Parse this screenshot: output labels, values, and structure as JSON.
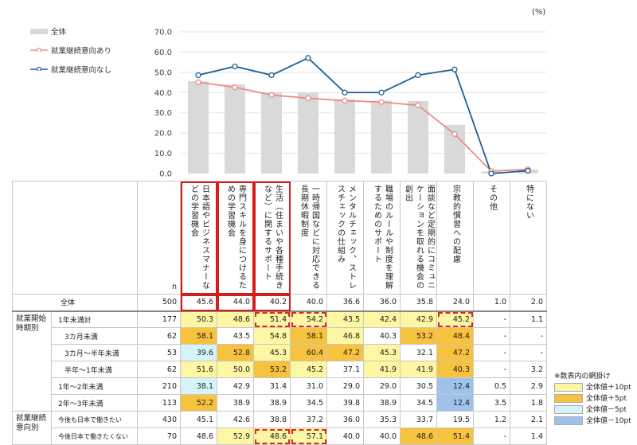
{
  "unit_label": "(%)",
  "legend": [
    {
      "label": "全体",
      "color": "#d9d9d9"
    },
    {
      "label": "就業継続意向あり",
      "color": "#ec8b8b"
    },
    {
      "label": "就業継続意向なし",
      "color": "#1f5e96"
    }
  ],
  "chart_data": {
    "type": "bar",
    "categories": [
      "日本語やビジネスマナーなどの学習機会",
      "専門スキルを身につけるための学習機会",
      "生活（住まいや各種手続きなど）に関するサポート",
      "一時帰国などに対応できる長期休暇制度",
      "メンタルチェック、ストレスチェックの仕組み",
      "職場のルールや制度を理解するためのサポート",
      "面談など定期的にコミュニケーションを取れる機会の創出",
      "宗教的慣習への配慮",
      "その他",
      "特にない"
    ],
    "ylim": [
      0,
      70
    ],
    "y_ticks": [
      "0.0",
      "10.0",
      "20.0",
      "30.0",
      "40.0",
      "50.0",
      "60.0",
      "70.0"
    ],
    "series": [
      {
        "name": "全体",
        "type": "bar",
        "values": [
          45.6,
          44.0,
          40.2,
          40.0,
          36.6,
          36.0,
          35.8,
          24.0,
          1.0,
          2.0
        ]
      },
      {
        "name": "就業継続意向あり",
        "type": "line",
        "values": [
          45.1,
          42.6,
          38.8,
          37.2,
          36.0,
          35.3,
          33.7,
          19.5,
          1.2,
          2.1
        ]
      },
      {
        "name": "就業継続意向なし",
        "type": "line",
        "values": [
          48.6,
          52.9,
          48.6,
          57.1,
          40.0,
          40.0,
          48.6,
          51.4,
          0,
          1.4
        ]
      }
    ]
  },
  "table": {
    "n_header": "n",
    "headers": [
      "日本語やビジネスマナーなどの学習機会",
      "専門スキルを身につけるための学習機会",
      "生活（住まいや各種手続きなど）に関するサポート",
      "一時帰国などに対応できる長期休暇制度",
      "メンタルチェック、ストレスチェックの仕組み",
      "職場のルールや制度を理解するためのサポート",
      "面談など定期的にコミュニケーションを取れる機会の創出",
      "宗教的慣習への配慮",
      "その他",
      "特にない"
    ],
    "groups": [
      {
        "label": "",
        "rows": [
          {
            "label": "全体",
            "n": "500",
            "values": [
              "45.6",
              "44.0",
              "40.2",
              "40.0",
              "36.6",
              "36.0",
              "35.8",
              "24.0",
              "1.0",
              "2.0"
            ],
            "marks": [
              "",
              "",
              "",
              "",
              "",
              "",
              "",
              "",
              "",
              ""
            ],
            "dashed": []
          }
        ]
      },
      {
        "label": "就業開始時期別",
        "rows": [
          {
            "label": "1年未満計",
            "n": "177",
            "values": [
              "50.3",
              "48.6",
              "51.4",
              "54.2",
              "43.5",
              "42.4",
              "42.9",
              "45.2",
              "-",
              "1.1"
            ],
            "marks": [
              "p10",
              "p10",
              "p10",
              "p10",
              "p10",
              "p10",
              "p10",
              "p10",
              "",
              ""
            ],
            "dashed": [
              2,
              3,
              7
            ]
          },
          {
            "label": "3カ月未満",
            "n": "62",
            "values": [
              "58.1",
              "43.5",
              "54.8",
              "58.1",
              "46.8",
              "40.3",
              "53.2",
              "48.4",
              "-",
              "-"
            ],
            "marks": [
              "p5",
              "",
              "p10",
              "p5",
              "p10",
              "",
              "p5",
              "p5",
              "",
              ""
            ],
            "dashed": []
          },
          {
            "label": "3カ月～半年未満",
            "n": "53",
            "values": [
              "39.6",
              "52.8",
              "45.3",
              "60.4",
              "47.2",
              "45.3",
              "32.1",
              "47.2",
              "-",
              "-"
            ],
            "marks": [
              "m5",
              "p5",
              "p10",
              "p5",
              "p5",
              "p10",
              "",
              "p5",
              "",
              ""
            ],
            "dashed": []
          },
          {
            "label": "半年～1年未満",
            "n": "62",
            "values": [
              "51.6",
              "50.0",
              "53.2",
              "45.2",
              "37.1",
              "41.9",
              "41.9",
              "40.3",
              "-",
              "3.2"
            ],
            "marks": [
              "p10",
              "p10",
              "p5",
              "p10",
              "",
              "p10",
              "p10",
              "p5",
              "",
              ""
            ],
            "dashed": []
          },
          {
            "label": "1年～2年未満",
            "n": "210",
            "values": [
              "38.1",
              "42.9",
              "31.4",
              "31.0",
              "29.0",
              "29.0",
              "30.5",
              "12.4",
              "0.5",
              "2.9"
            ],
            "marks": [
              "m5",
              "",
              "",
              "",
              "",
              "",
              "",
              "m10",
              "",
              ""
            ],
            "dashed": []
          },
          {
            "label": "2年～3年未満",
            "n": "113",
            "values": [
              "52.2",
              "38.9",
              "38.9",
              "34.5",
              "39.8",
              "38.9",
              "34.5",
              "12.4",
              "3.5",
              "1.8"
            ],
            "marks": [
              "p5",
              "",
              "",
              "",
              "",
              "",
              "",
              "m10",
              "",
              ""
            ],
            "dashed": []
          }
        ]
      },
      {
        "label": "就業継続意向別",
        "rows": [
          {
            "label": "今後も日本で働きたい",
            "n": "430",
            "values": [
              "45.1",
              "42.6",
              "38.8",
              "37.2",
              "36.0",
              "35.3",
              "33.7",
              "19.5",
              "1.2",
              "2.1"
            ],
            "marks": [
              "",
              "",
              "",
              "",
              "",
              "",
              "",
              "",
              "",
              ""
            ],
            "dashed": []
          },
          {
            "label": "今後日本で働きたくない",
            "n": "70",
            "values": [
              "48.6",
              "52.9",
              "48.6",
              "57.1",
              "40.0",
              "40.0",
              "48.6",
              "51.4",
              "-",
              "1.4"
            ],
            "marks": [
              "",
              "p10",
              "p10",
              "p10",
              "",
              "",
              "p5",
              "p5",
              "",
              ""
            ],
            "dashed": [
              2,
              3
            ]
          }
        ]
      }
    ]
  },
  "notes": {
    "title": "※数表内の網掛け",
    "items": [
      {
        "label": "全体値＋10pt",
        "color": "#fdf6a3"
      },
      {
        "label": "全体値＋5pt",
        "color": "#f7c23d"
      },
      {
        "label": "全体値－5pt",
        "color": "#d4f4f9"
      },
      {
        "label": "全体値－10pt",
        "color": "#9ec2ec"
      }
    ]
  }
}
